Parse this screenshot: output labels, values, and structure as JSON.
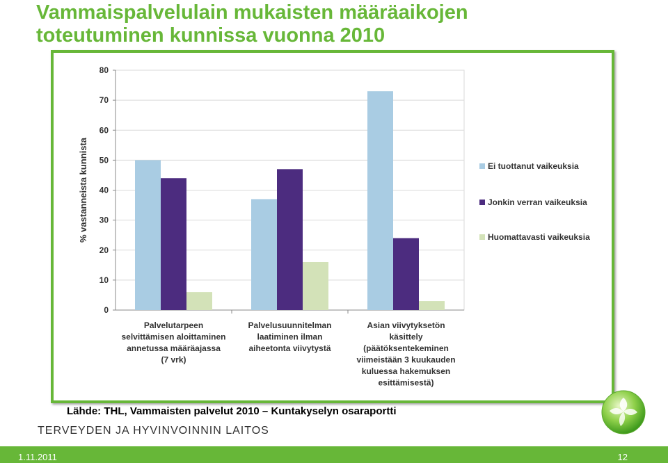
{
  "title": {
    "line1": "Vammaispalvelulain mukaisten määräaikojen",
    "line2": "toteutuminen kunnissa vuonna 2010"
  },
  "source_text": "Lähde: THL, Vammaisten palvelut 2010 – Kuntakyselyn osaraportti",
  "org_name": "TERVEYDEN JA HYVINVOINNIN LAITOS",
  "footer": {
    "date": "1.11.2011",
    "page": "12"
  },
  "colors": {
    "accent_green": "#67b738"
  },
  "chart_data": {
    "type": "bar",
    "title": "",
    "xlabel": "",
    "ylabel": "% vastanneista kunnista",
    "ylim": [
      0,
      80
    ],
    "yticks": [
      0,
      10,
      20,
      30,
      40,
      50,
      60,
      70,
      80
    ],
    "grid": true,
    "legend_position": "right",
    "categories": [
      [
        "Palvelutarpeen",
        "selvittämisen aloittaminen",
        "annetussa määräajassa",
        "(7 vrk)"
      ],
      [
        "Palvelusuunnitelman",
        "laatiminen ilman",
        "aiheetonta viivytystä"
      ],
      [
        "Asian viivytyksetön",
        "käsittely",
        "(päätöksentekeminen",
        "viimeistään 3 kuukauden",
        "kuluessa hakemuksen",
        "esittämisestä)"
      ]
    ],
    "series": [
      {
        "name": "Ei tuottanut vaikeuksia",
        "color": "#a9cce3",
        "values": [
          50,
          37,
          73
        ]
      },
      {
        "name": "Jonkin verran vaikeuksia",
        "color": "#4c2c7f",
        "values": [
          44,
          47,
          24
        ]
      },
      {
        "name": "Huomattavasti vaikeuksia",
        "color": "#d3e2b8",
        "values": [
          6,
          16,
          3
        ]
      }
    ]
  }
}
